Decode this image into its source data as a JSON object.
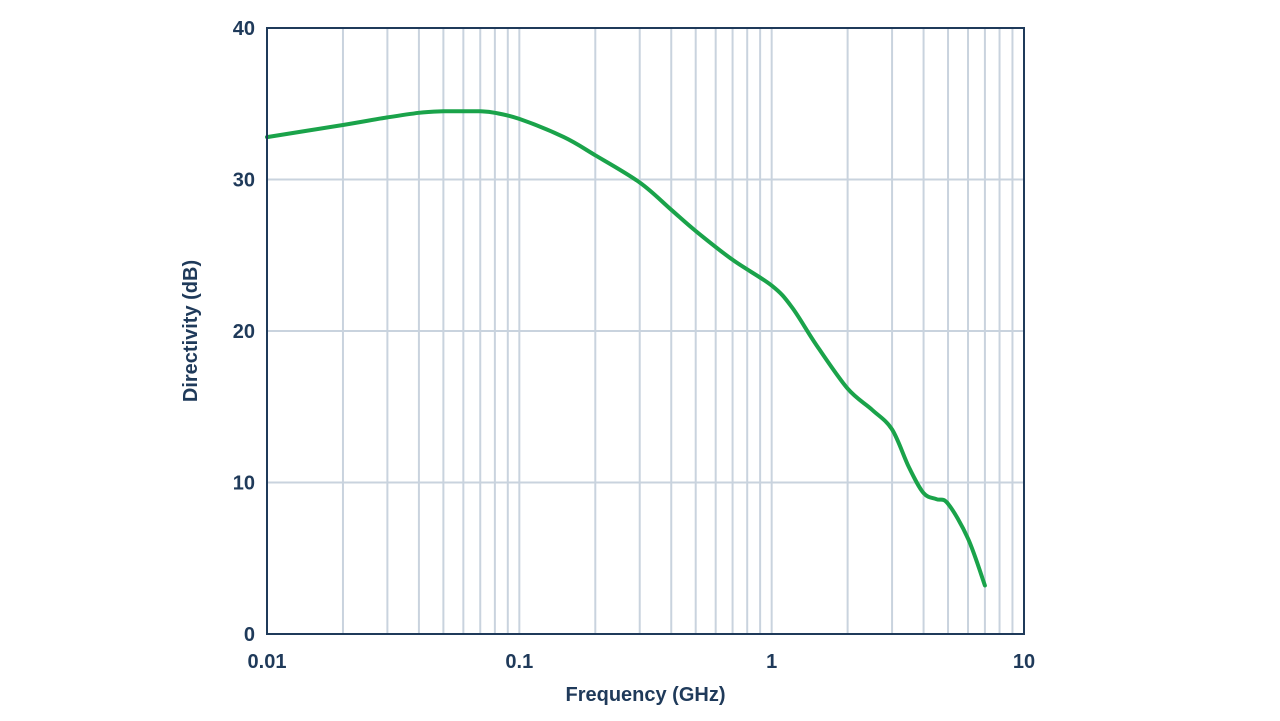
{
  "chart_data": {
    "type": "line",
    "title": "",
    "xlabel": "Frequency (GHz)",
    "ylabel": "Directivity (dB)",
    "xscale": "log",
    "xlim": [
      0.01,
      10
    ],
    "ylim": [
      0,
      40
    ],
    "grid": true,
    "legend": "none",
    "x_ticks": [
      {
        "value": 0.01,
        "label": "0.01"
      },
      {
        "value": 0.1,
        "label": "0.1"
      },
      {
        "value": 1,
        "label": "1"
      },
      {
        "value": 10,
        "label": "10"
      }
    ],
    "y_ticks": [
      {
        "value": 0,
        "label": "0"
      },
      {
        "value": 10,
        "label": "10"
      },
      {
        "value": 20,
        "label": "20"
      },
      {
        "value": 30,
        "label": "30"
      },
      {
        "value": 40,
        "label": "40"
      }
    ],
    "series": [
      {
        "color": "#1aa34a",
        "x": [
          0.01,
          0.02,
          0.03,
          0.04,
          0.05,
          0.06,
          0.07,
          0.08,
          0.1,
          0.15,
          0.2,
          0.3,
          0.4,
          0.5,
          0.7,
          1,
          1.2,
          1.5,
          2,
          2.5,
          3,
          3.5,
          4,
          4.5,
          5,
          6,
          7
        ],
        "y": [
          32.8,
          33.6,
          34.1,
          34.4,
          34.5,
          34.5,
          34.5,
          34.4,
          34.0,
          32.8,
          31.6,
          29.8,
          28.0,
          26.6,
          24.7,
          23.0,
          21.6,
          19.1,
          16.2,
          14.8,
          13.5,
          11.0,
          9.3,
          8.9,
          8.6,
          6.3,
          3.2
        ]
      }
    ]
  }
}
